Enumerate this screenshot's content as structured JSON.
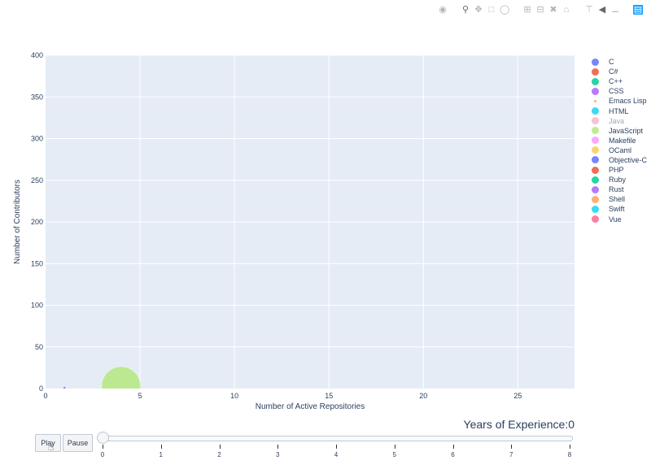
{
  "chart_data": {
    "type": "scatter",
    "xlabel": "Number of Active Repositories",
    "ylabel": "Number of Contributors",
    "xlim": [
      0,
      28
    ],
    "ylim": [
      0,
      400
    ],
    "x_ticks": [
      0,
      5,
      10,
      15,
      20,
      25
    ],
    "y_ticks": [
      0,
      50,
      100,
      150,
      200,
      250,
      300,
      350,
      400
    ],
    "grid": true,
    "legend_placement": "right",
    "series": [
      {
        "name": "C",
        "color": "#636efa",
        "points": []
      },
      {
        "name": "C#",
        "color": "#ef553b",
        "points": []
      },
      {
        "name": "C++",
        "color": "#00cc96",
        "points": []
      },
      {
        "name": "CSS",
        "color": "#ab63fa",
        "points": []
      },
      {
        "name": "Emacs Lisp",
        "color": "#ffa15a",
        "points": [],
        "small": true
      },
      {
        "name": "HTML",
        "color": "#19d3f3",
        "points": []
      },
      {
        "name": "Java",
        "color": "#ff6692",
        "points": [],
        "faded": true
      },
      {
        "name": "JavaScript",
        "color": "#b6e880",
        "points": [
          {
            "x": 4,
            "y": 3,
            "size": 48
          }
        ]
      },
      {
        "name": "Makefile",
        "color": "#ff97ff",
        "points": []
      },
      {
        "name": "OCaml",
        "color": "#fecb52",
        "points": []
      },
      {
        "name": "Objective-C",
        "color": "#636efa",
        "points": [
          {
            "x": 1,
            "y": 1,
            "size": 3
          }
        ]
      },
      {
        "name": "PHP",
        "color": "#ef553b",
        "points": []
      },
      {
        "name": "Ruby",
        "color": "#00cc96",
        "points": []
      },
      {
        "name": "Rust",
        "color": "#ab63fa",
        "points": []
      },
      {
        "name": "Shell",
        "color": "#ffa15a",
        "points": []
      },
      {
        "name": "Swift",
        "color": "#19d3f3",
        "points": []
      },
      {
        "name": "Vue",
        "color": "#ff6692",
        "points": []
      }
    ]
  },
  "slider": {
    "title": "Years of Experience:0",
    "current": 0,
    "steps": [
      "0",
      "1",
      "2",
      "3",
      "4",
      "5",
      "6",
      "7",
      "8"
    ]
  },
  "controls": {
    "play_label": "Play",
    "pause_label": "Pause"
  },
  "modebar": {
    "icons": [
      "camera-icon",
      "zoom-icon",
      "pan-icon",
      "box-select-icon",
      "lasso-icon",
      "zoom-in-icon",
      "zoom-out-icon",
      "autoscale-icon",
      "home-icon",
      "spike-lines-icon",
      "hover-closest-icon",
      "hover-compare-icon",
      "plotly-logo-icon"
    ]
  }
}
